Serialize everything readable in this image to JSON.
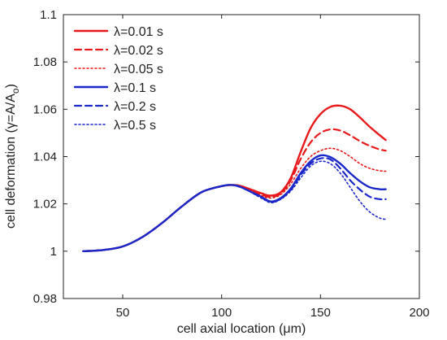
{
  "chart_data": {
    "type": "line",
    "xlabel": "cell axial location (μm)",
    "ylabel": "cell deformation (γ=A/A",
    "ylabel_sub": "o",
    "ylabel_close": ")",
    "xlim": [
      20,
      200
    ],
    "ylim": [
      0.98,
      1.1
    ],
    "xticks": [
      50,
      100,
      150,
      200
    ],
    "yticks": [
      0.98,
      1,
      1.02,
      1.04,
      1.06,
      1.08,
      1.1
    ],
    "xtick_labels": [
      "50",
      "100",
      "150",
      "200"
    ],
    "ytick_labels": [
      "0.98",
      "1",
      "1.02",
      "1.04",
      "1.06",
      "1.08",
      "1.1"
    ],
    "grid": false,
    "legend_position": "top-left",
    "colors": {
      "red": "#e8191a",
      "blue": "#1a27c9"
    },
    "series": [
      {
        "name": "λ=0.01 s",
        "color": "#e8191a",
        "style": "solid",
        "x": [
          30,
          40,
          50,
          60,
          70,
          80,
          90,
          100,
          105,
          110,
          120,
          125,
          130,
          135,
          140,
          145,
          150,
          155,
          160,
          165,
          170,
          175,
          180,
          183
        ],
        "y": [
          1.0,
          1.0005,
          1.002,
          1.006,
          1.012,
          1.019,
          1.025,
          1.0275,
          1.028,
          1.0275,
          1.0245,
          1.0235,
          1.025,
          1.031,
          1.042,
          1.052,
          1.058,
          1.061,
          1.0615,
          1.06,
          1.0565,
          1.0525,
          1.049,
          1.047
        ]
      },
      {
        "name": "λ=0.02 s",
        "color": "#e8191a",
        "style": "dashed",
        "x": [
          30,
          40,
          50,
          60,
          70,
          80,
          90,
          100,
          105,
          110,
          120,
          125,
          130,
          135,
          140,
          145,
          150,
          155,
          160,
          165,
          170,
          175,
          180,
          183
        ],
        "y": [
          1.0,
          1.0005,
          1.002,
          1.006,
          1.012,
          1.019,
          1.025,
          1.0275,
          1.028,
          1.0275,
          1.024,
          1.023,
          1.0245,
          1.03,
          1.039,
          1.046,
          1.05,
          1.0515,
          1.051,
          1.049,
          1.0465,
          1.0445,
          1.043,
          1.0425
        ]
      },
      {
        "name": "λ=0.05 s",
        "color": "#e8191a",
        "style": "dotted",
        "x": [
          30,
          40,
          50,
          60,
          70,
          80,
          90,
          100,
          105,
          110,
          120,
          125,
          130,
          135,
          140,
          145,
          150,
          155,
          160,
          165,
          170,
          175,
          180,
          183
        ],
        "y": [
          1.0,
          1.0005,
          1.002,
          1.006,
          1.012,
          1.019,
          1.025,
          1.0275,
          1.028,
          1.0272,
          1.0235,
          1.0225,
          1.024,
          1.0285,
          1.035,
          1.04,
          1.0425,
          1.0435,
          1.0425,
          1.04,
          1.037,
          1.035,
          1.034,
          1.0338
        ]
      },
      {
        "name": "λ=0.1 s",
        "color": "#1a27c9",
        "style": "solid",
        "x": [
          30,
          40,
          50,
          60,
          70,
          80,
          90,
          100,
          105,
          110,
          120,
          125,
          130,
          135,
          140,
          145,
          150,
          155,
          160,
          165,
          170,
          175,
          180,
          183
        ],
        "y": [
          1.0,
          1.0005,
          1.002,
          1.006,
          1.012,
          1.019,
          1.025,
          1.0275,
          1.028,
          1.027,
          1.023,
          1.021,
          1.0225,
          1.0265,
          1.033,
          1.038,
          1.0405,
          1.0398,
          1.037,
          1.033,
          1.0295,
          1.027,
          1.0262,
          1.0262
        ]
      },
      {
        "name": "λ=0.2 s",
        "color": "#1a27c9",
        "style": "dashed",
        "x": [
          30,
          40,
          50,
          60,
          70,
          80,
          90,
          100,
          105,
          110,
          120,
          125,
          130,
          135,
          140,
          145,
          150,
          155,
          160,
          165,
          170,
          175,
          180,
          183
        ],
        "y": [
          1.0,
          1.0005,
          1.002,
          1.006,
          1.012,
          1.019,
          1.025,
          1.0275,
          1.028,
          1.027,
          1.0228,
          1.0208,
          1.0222,
          1.026,
          1.0322,
          1.037,
          1.0392,
          1.0388,
          1.035,
          1.03,
          1.026,
          1.023,
          1.022,
          1.022
        ]
      },
      {
        "name": "λ=0.5 s",
        "color": "#1a27c9",
        "style": "dotted",
        "x": [
          30,
          40,
          50,
          60,
          70,
          80,
          90,
          100,
          105,
          110,
          120,
          125,
          130,
          135,
          140,
          145,
          150,
          155,
          160,
          165,
          170,
          175,
          180,
          183
        ],
        "y": [
          1.0,
          1.0005,
          1.002,
          1.006,
          1.012,
          1.019,
          1.025,
          1.0275,
          1.028,
          1.027,
          1.0225,
          1.0205,
          1.022,
          1.0255,
          1.031,
          1.036,
          1.038,
          1.037,
          1.033,
          1.027,
          1.021,
          1.0165,
          1.014,
          1.0135
        ]
      }
    ]
  }
}
